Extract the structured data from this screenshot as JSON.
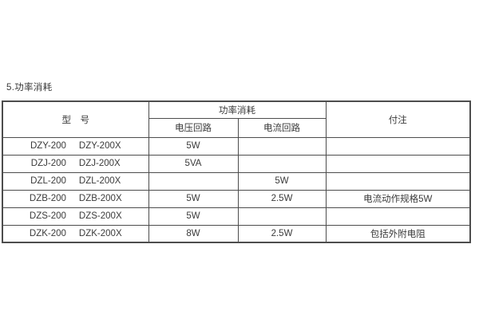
{
  "page": {
    "heading": "5.功率消耗"
  },
  "table": {
    "header": {
      "model": "型　号",
      "power": "功率消耗",
      "voltage": "电压回路",
      "current": "电流回路",
      "notes": "付注"
    },
    "rows": [
      {
        "model_a": "DZY-200",
        "model_b": "DZY-200X",
        "voltage": "5W",
        "current": "",
        "notes": ""
      },
      {
        "model_a": "DZJ-200",
        "model_b": "DZJ-200X",
        "voltage": "5VA",
        "current": "",
        "notes": ""
      },
      {
        "model_a": "DZL-200",
        "model_b": "DZL-200X",
        "voltage": "",
        "current": "5W",
        "notes": ""
      },
      {
        "model_a": "DZB-200",
        "model_b": "DZB-200X",
        "voltage": "5W",
        "current": "2.5W",
        "notes": "电流动作规格5W"
      },
      {
        "model_a": "DZS-200",
        "model_b": "DZS-200X",
        "voltage": "5W",
        "current": "",
        "notes": ""
      },
      {
        "model_a": "DZK-200",
        "model_b": "DZK-200X",
        "voltage": "8W",
        "current": "2.5W",
        "notes": "包括外附电阻"
      }
    ]
  }
}
